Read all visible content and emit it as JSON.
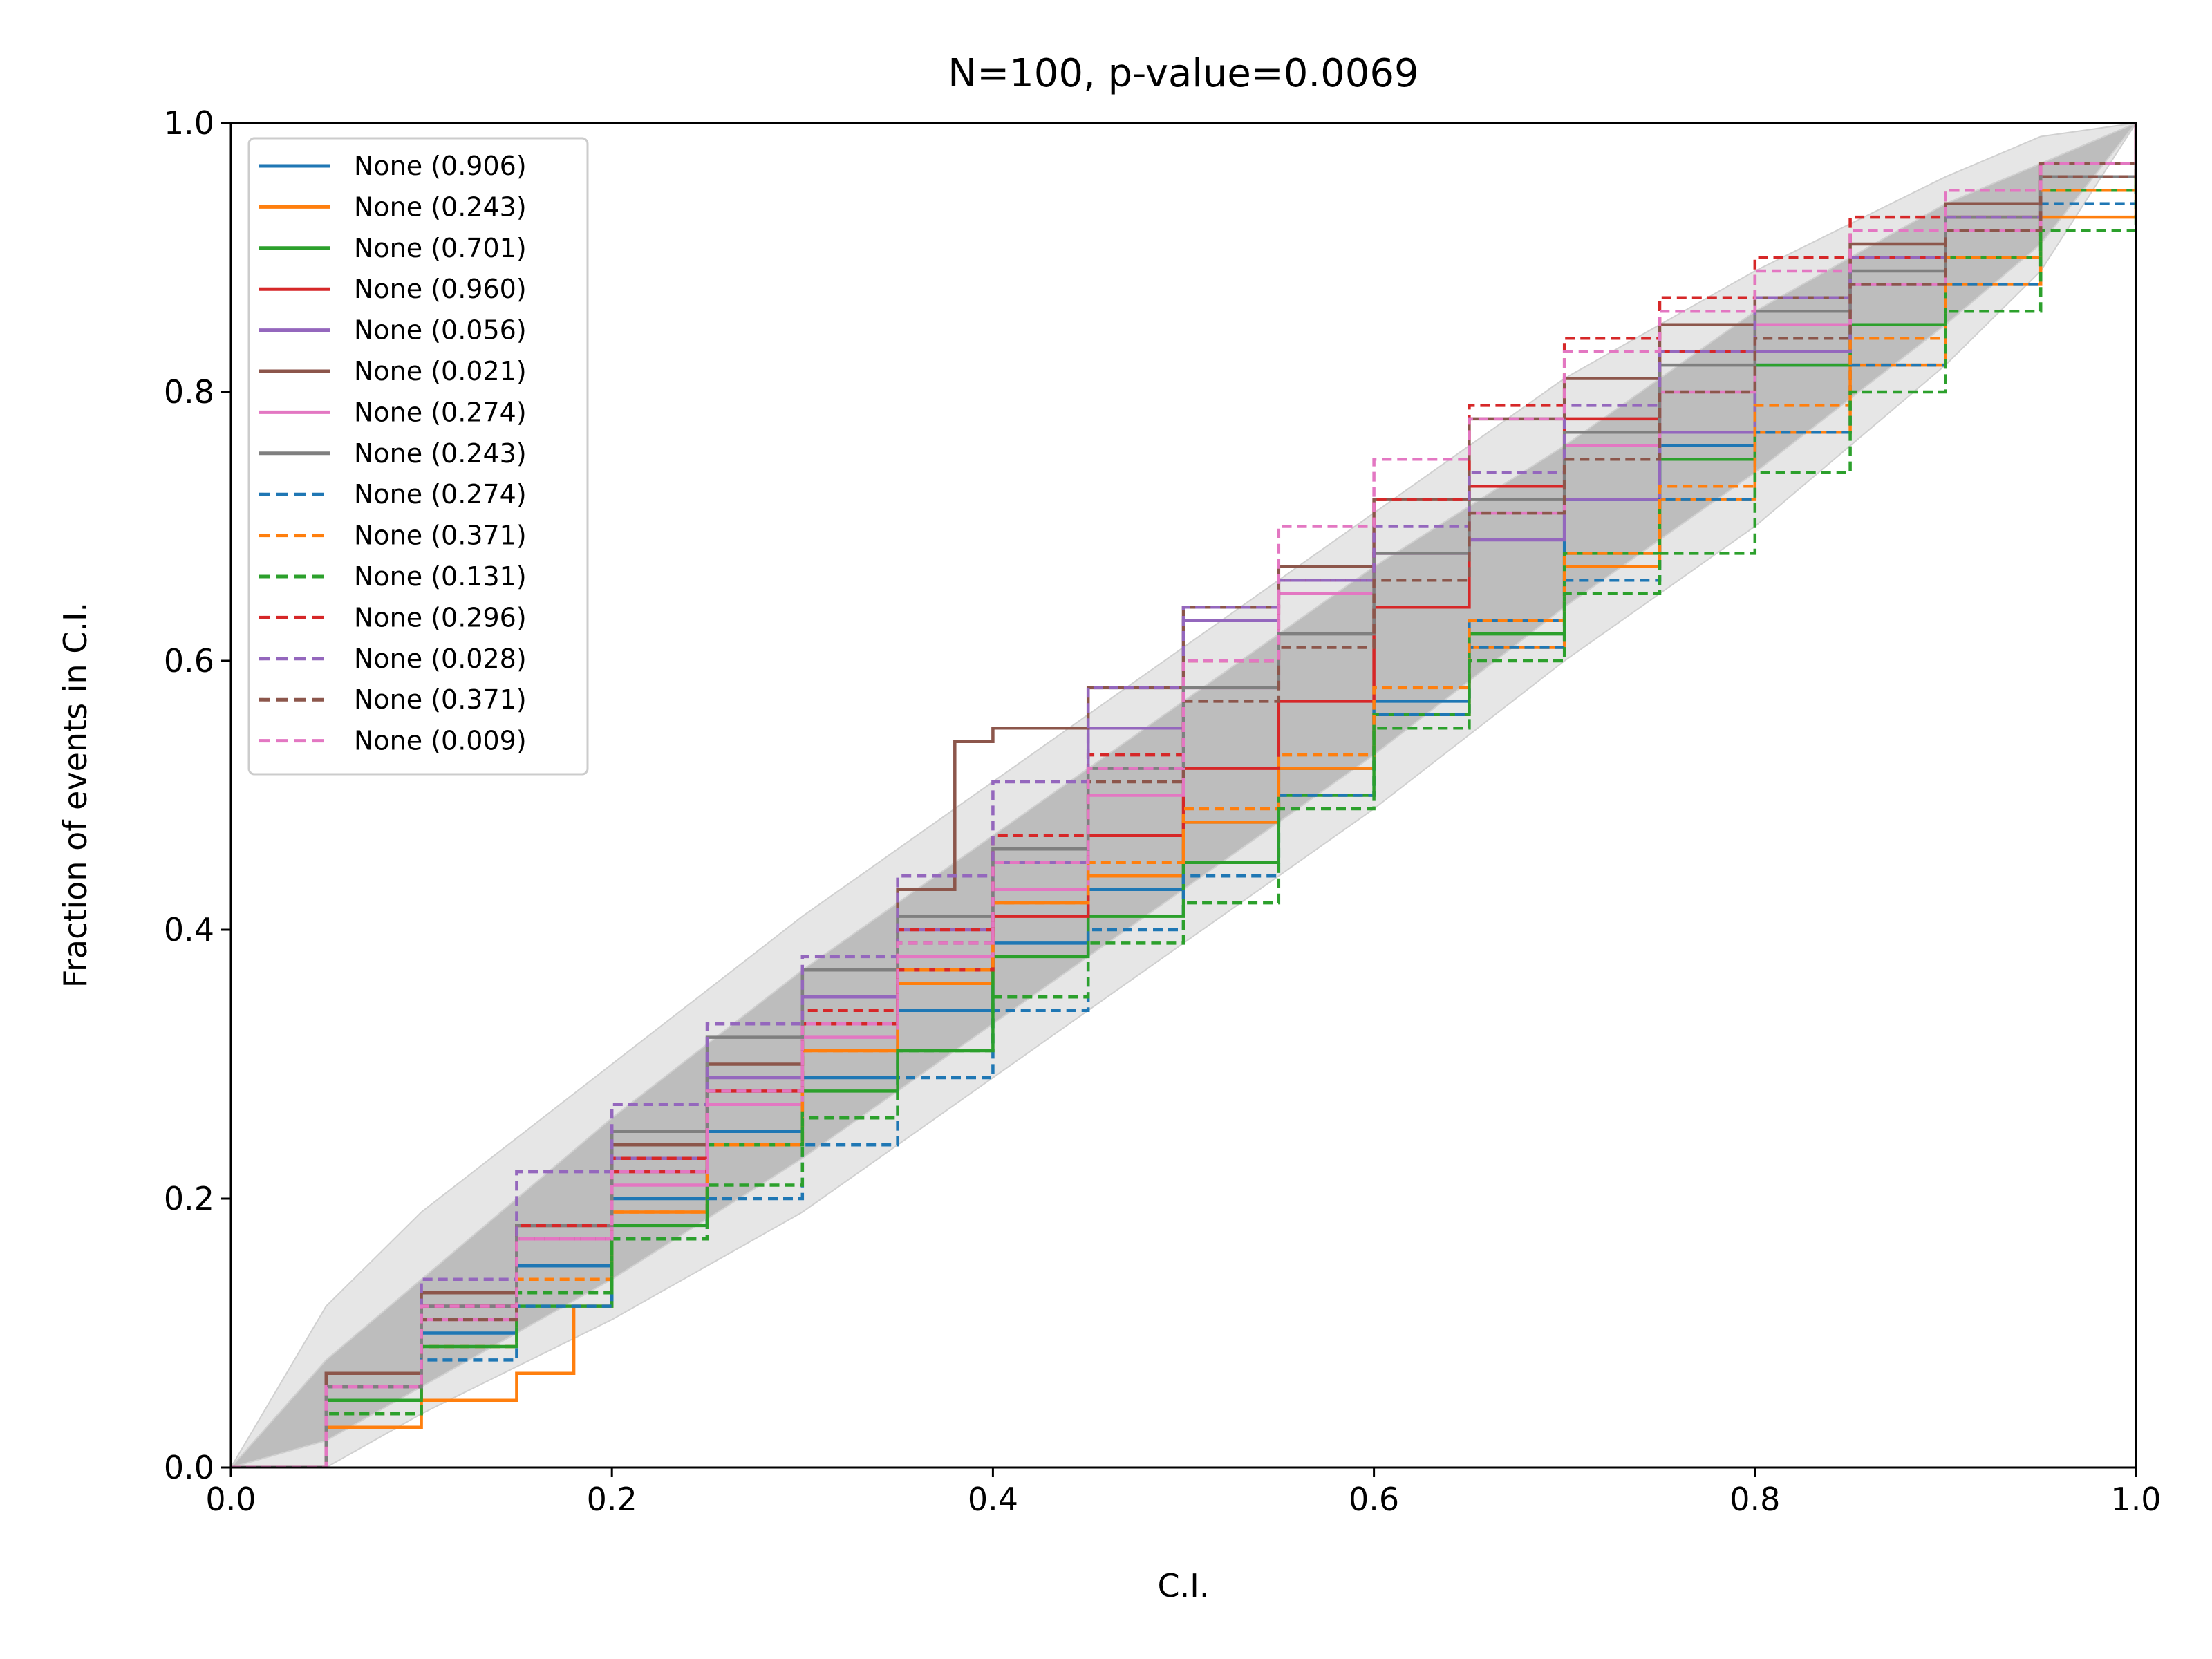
{
  "chart_data": {
    "type": "line",
    "title": "N=100, p-value=0.0069",
    "xlabel": "C.I.",
    "ylabel": "Fraction of events in C.I.",
    "xlim": [
      0,
      1
    ],
    "ylim": [
      0,
      1
    ],
    "x_ticks": [
      "0.0",
      "0.2",
      "0.4",
      "0.6",
      "0.8",
      "1.0"
    ],
    "y_ticks": [
      "0.0",
      "0.2",
      "0.4",
      "0.6",
      "0.8",
      "1.0"
    ],
    "grid": false,
    "legend_position": "upper-left",
    "confidence_bands": [
      {
        "level": "outer",
        "color": "#e6e6e6",
        "x": [
          0,
          0.05,
          0.1,
          0.2,
          0.3,
          0.4,
          0.5,
          0.6,
          0.7,
          0.8,
          0.9,
          0.95,
          1
        ],
        "lower": [
          0,
          0.0,
          0.04,
          0.11,
          0.19,
          0.29,
          0.39,
          0.49,
          0.6,
          0.7,
          0.82,
          0.89,
          1
        ],
        "upper": [
          0,
          0.12,
          0.19,
          0.3,
          0.41,
          0.51,
          0.61,
          0.71,
          0.81,
          0.89,
          0.96,
          0.99,
          1
        ]
      },
      {
        "level": "inner",
        "color": "#bdbdbd",
        "x": [
          0,
          0.05,
          0.1,
          0.2,
          0.3,
          0.4,
          0.5,
          0.6,
          0.7,
          0.8,
          0.9,
          0.95,
          1
        ],
        "lower": [
          0,
          0.02,
          0.06,
          0.14,
          0.23,
          0.33,
          0.43,
          0.53,
          0.64,
          0.74,
          0.85,
          0.91,
          1
        ],
        "upper": [
          0,
          0.08,
          0.14,
          0.26,
          0.37,
          0.47,
          0.57,
          0.67,
          0.76,
          0.86,
          0.94,
          0.97,
          1
        ]
      }
    ],
    "series": [
      {
        "name": "None (0.906)",
        "color": "#1f77b4",
        "dash": false,
        "x": [
          0,
          0.05,
          0.1,
          0.15,
          0.2,
          0.25,
          0.3,
          0.35,
          0.4,
          0.45,
          0.5,
          0.55,
          0.6,
          0.65,
          0.7,
          0.75,
          0.8,
          0.85,
          0.9,
          0.95,
          1
        ],
        "y": [
          0,
          0.05,
          0.1,
          0.15,
          0.2,
          0.25,
          0.29,
          0.34,
          0.39,
          0.43,
          0.48,
          0.52,
          0.57,
          0.63,
          0.72,
          0.76,
          0.82,
          0.85,
          0.9,
          0.95,
          1
        ]
      },
      {
        "name": "None (0.243)",
        "color": "#ff7f0e",
        "dash": false,
        "x": [
          0,
          0.05,
          0.1,
          0.15,
          0.17,
          0.18,
          0.2,
          0.25,
          0.3,
          0.35,
          0.4,
          0.45,
          0.5,
          0.55,
          0.6,
          0.65,
          0.7,
          0.75,
          0.8,
          0.85,
          0.9,
          0.95,
          1
        ],
        "y": [
          0,
          0.03,
          0.05,
          0.07,
          0.07,
          0.12,
          0.19,
          0.24,
          0.31,
          0.36,
          0.42,
          0.44,
          0.48,
          0.52,
          0.56,
          0.61,
          0.67,
          0.72,
          0.77,
          0.82,
          0.88,
          0.93,
          1
        ]
      },
      {
        "name": "None (0.701)",
        "color": "#2ca02c",
        "dash": false,
        "x": [
          0,
          0.05,
          0.1,
          0.15,
          0.2,
          0.25,
          0.3,
          0.35,
          0.4,
          0.45,
          0.5,
          0.55,
          0.6,
          0.65,
          0.7,
          0.75,
          0.8,
          0.85,
          0.9,
          0.95,
          1
        ],
        "y": [
          0,
          0.05,
          0.09,
          0.12,
          0.18,
          0.24,
          0.28,
          0.31,
          0.38,
          0.41,
          0.45,
          0.5,
          0.56,
          0.62,
          0.68,
          0.75,
          0.82,
          0.85,
          0.9,
          0.95,
          1
        ]
      },
      {
        "name": "None (0.960)",
        "color": "#d62728",
        "dash": false,
        "x": [
          0,
          0.05,
          0.1,
          0.15,
          0.2,
          0.25,
          0.3,
          0.35,
          0.4,
          0.45,
          0.5,
          0.55,
          0.6,
          0.65,
          0.7,
          0.75,
          0.8,
          0.85,
          0.9,
          0.95,
          1
        ],
        "y": [
          0,
          0.06,
          0.12,
          0.18,
          0.22,
          0.28,
          0.33,
          0.37,
          0.41,
          0.47,
          0.52,
          0.57,
          0.64,
          0.73,
          0.78,
          0.83,
          0.87,
          0.9,
          0.93,
          0.97,
          1
        ]
      },
      {
        "name": "None (0.056)",
        "color": "#9467bd",
        "dash": false,
        "x": [
          0,
          0.05,
          0.1,
          0.15,
          0.2,
          0.25,
          0.3,
          0.35,
          0.4,
          0.45,
          0.5,
          0.55,
          0.6,
          0.65,
          0.7,
          0.75,
          0.8,
          0.85,
          0.9,
          0.95,
          1
        ],
        "y": [
          0,
          0.07,
          0.12,
          0.17,
          0.23,
          0.29,
          0.35,
          0.4,
          0.45,
          0.55,
          0.63,
          0.66,
          0.68,
          0.69,
          0.72,
          0.77,
          0.83,
          0.88,
          0.92,
          0.96,
          1
        ]
      },
      {
        "name": "None (0.021)",
        "color": "#8c564b",
        "dash": false,
        "x": [
          0,
          0.05,
          0.1,
          0.15,
          0.2,
          0.25,
          0.3,
          0.35,
          0.38,
          0.4,
          0.45,
          0.5,
          0.55,
          0.6,
          0.65,
          0.7,
          0.75,
          0.8,
          0.85,
          0.9,
          0.95,
          1
        ],
        "y": [
          0,
          0.07,
          0.13,
          0.18,
          0.24,
          0.3,
          0.37,
          0.43,
          0.54,
          0.55,
          0.58,
          0.64,
          0.67,
          0.72,
          0.78,
          0.81,
          0.85,
          0.87,
          0.91,
          0.94,
          0.97,
          1
        ]
      },
      {
        "name": "None (0.274)",
        "color": "#e377c2",
        "dash": false,
        "x": [
          0,
          0.05,
          0.1,
          0.15,
          0.2,
          0.25,
          0.3,
          0.35,
          0.4,
          0.45,
          0.5,
          0.55,
          0.6,
          0.65,
          0.7,
          0.75,
          0.8,
          0.85,
          0.9,
          0.95,
          1
        ],
        "y": [
          0,
          0.06,
          0.11,
          0.17,
          0.21,
          0.27,
          0.32,
          0.38,
          0.43,
          0.5,
          0.58,
          0.65,
          0.68,
          0.71,
          0.76,
          0.8,
          0.85,
          0.88,
          0.92,
          0.96,
          1
        ]
      },
      {
        "name": "None (0.243)",
        "color": "#7f7f7f",
        "dash": false,
        "x": [
          0,
          0.05,
          0.1,
          0.15,
          0.2,
          0.25,
          0.3,
          0.35,
          0.4,
          0.45,
          0.5,
          0.55,
          0.6,
          0.65,
          0.7,
          0.75,
          0.8,
          0.85,
          0.9,
          0.95,
          1
        ],
        "y": [
          0,
          0.06,
          0.12,
          0.18,
          0.25,
          0.32,
          0.37,
          0.41,
          0.46,
          0.52,
          0.58,
          0.62,
          0.68,
          0.72,
          0.77,
          0.82,
          0.86,
          0.89,
          0.93,
          0.96,
          1
        ]
      },
      {
        "name": "None (0.274)",
        "color": "#1f77b4",
        "dash": true,
        "x": [
          0,
          0.05,
          0.1,
          0.15,
          0.2,
          0.25,
          0.3,
          0.35,
          0.4,
          0.45,
          0.5,
          0.55,
          0.6,
          0.65,
          0.7,
          0.75,
          0.8,
          0.85,
          0.9,
          0.95,
          1
        ],
        "y": [
          0,
          0.04,
          0.08,
          0.12,
          0.17,
          0.2,
          0.24,
          0.29,
          0.34,
          0.4,
          0.44,
          0.5,
          0.56,
          0.61,
          0.66,
          0.72,
          0.77,
          0.82,
          0.88,
          0.94,
          1
        ]
      },
      {
        "name": "None (0.371)",
        "color": "#ff7f0e",
        "dash": true,
        "x": [
          0,
          0.05,
          0.1,
          0.15,
          0.2,
          0.25,
          0.3,
          0.35,
          0.4,
          0.45,
          0.5,
          0.55,
          0.6,
          0.65,
          0.7,
          0.75,
          0.8,
          0.85,
          0.9,
          0.95,
          1
        ],
        "y": [
          0,
          0.04,
          0.09,
          0.14,
          0.19,
          0.24,
          0.31,
          0.37,
          0.42,
          0.45,
          0.49,
          0.53,
          0.58,
          0.63,
          0.68,
          0.73,
          0.79,
          0.84,
          0.9,
          0.95,
          1
        ]
      },
      {
        "name": "None (0.131)",
        "color": "#2ca02c",
        "dash": true,
        "x": [
          0,
          0.05,
          0.1,
          0.15,
          0.2,
          0.25,
          0.3,
          0.35,
          0.4,
          0.45,
          0.5,
          0.55,
          0.6,
          0.65,
          0.7,
          0.75,
          0.8,
          0.85,
          0.9,
          0.95,
          1
        ],
        "y": [
          0,
          0.04,
          0.09,
          0.13,
          0.17,
          0.21,
          0.26,
          0.31,
          0.35,
          0.39,
          0.42,
          0.49,
          0.55,
          0.6,
          0.65,
          0.68,
          0.74,
          0.8,
          0.86,
          0.92,
          1
        ]
      },
      {
        "name": "None (0.296)",
        "color": "#d62728",
        "dash": true,
        "x": [
          0,
          0.05,
          0.1,
          0.15,
          0.2,
          0.25,
          0.3,
          0.35,
          0.4,
          0.45,
          0.5,
          0.55,
          0.6,
          0.65,
          0.7,
          0.75,
          0.8,
          0.85,
          0.9,
          0.95,
          1
        ],
        "y": [
          0,
          0.06,
          0.12,
          0.18,
          0.23,
          0.28,
          0.34,
          0.4,
          0.47,
          0.53,
          0.6,
          0.66,
          0.72,
          0.79,
          0.84,
          0.87,
          0.9,
          0.93,
          0.95,
          0.97,
          1
        ]
      },
      {
        "name": "None (0.028)",
        "color": "#9467bd",
        "dash": true,
        "x": [
          0,
          0.05,
          0.1,
          0.15,
          0.2,
          0.25,
          0.3,
          0.35,
          0.4,
          0.45,
          0.5,
          0.55,
          0.6,
          0.65,
          0.7,
          0.75,
          0.8,
          0.85,
          0.9,
          0.95,
          1
        ],
        "y": [
          0,
          0.06,
          0.14,
          0.22,
          0.27,
          0.33,
          0.38,
          0.44,
          0.51,
          0.58,
          0.64,
          0.66,
          0.7,
          0.74,
          0.79,
          0.83,
          0.87,
          0.9,
          0.93,
          0.96,
          1
        ]
      },
      {
        "name": "None (0.371)",
        "color": "#8c564b",
        "dash": true,
        "x": [
          0,
          0.05,
          0.1,
          0.15,
          0.2,
          0.25,
          0.3,
          0.35,
          0.4,
          0.45,
          0.5,
          0.55,
          0.6,
          0.65,
          0.7,
          0.75,
          0.8,
          0.85,
          0.9,
          0.95,
          1
        ],
        "y": [
          0,
          0.06,
          0.11,
          0.17,
          0.22,
          0.28,
          0.33,
          0.39,
          0.45,
          0.51,
          0.57,
          0.61,
          0.66,
          0.71,
          0.75,
          0.8,
          0.84,
          0.88,
          0.92,
          0.96,
          1
        ]
      },
      {
        "name": "None (0.009)",
        "color": "#e377c2",
        "dash": true,
        "x": [
          0,
          0.05,
          0.1,
          0.15,
          0.2,
          0.25,
          0.3,
          0.35,
          0.4,
          0.45,
          0.5,
          0.55,
          0.6,
          0.65,
          0.7,
          0.75,
          0.8,
          0.85,
          0.9,
          0.95,
          1
        ],
        "y": [
          0,
          0.06,
          0.12,
          0.17,
          0.22,
          0.28,
          0.33,
          0.39,
          0.45,
          0.52,
          0.6,
          0.7,
          0.75,
          0.78,
          0.83,
          0.86,
          0.89,
          0.92,
          0.95,
          0.97,
          1
        ]
      }
    ]
  }
}
